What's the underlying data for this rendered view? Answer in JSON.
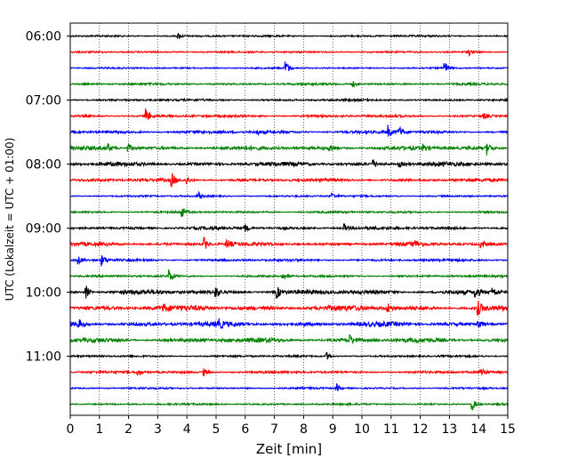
{
  "chart_data": {
    "type": "line",
    "subtype": "helicorder",
    "xlabel": "Zeit  [min]",
    "ylabel": "UTC (Lokalzeit = UTC + 01:00)",
    "xlim": [
      0,
      15
    ],
    "x_ticks": [
      "0",
      "1",
      "2",
      "3",
      "4",
      "5",
      "6",
      "7",
      "8",
      "9",
      "10",
      "11",
      "12",
      "13",
      "14",
      "15"
    ],
    "y_ticks": [
      "06:00",
      "07:00",
      "08:00",
      "09:00",
      "10:00",
      "11:00"
    ],
    "grid": "vertical dotted at each minute",
    "line_colors": [
      "#000000",
      "#ff0000",
      "#0000ff",
      "#008000"
    ],
    "trace_minutes_per_line": 15,
    "traces": [
      {
        "start": "06:00",
        "color": "#000000",
        "noise": 0.8,
        "events": [
          [
            3.7,
            3.0
          ]
        ]
      },
      {
        "start": "06:15",
        "color": "#ff0000",
        "noise": 0.7,
        "events": [
          [
            13.7,
            3.0
          ]
        ]
      },
      {
        "start": "06:30",
        "color": "#0000ff",
        "noise": 0.6,
        "events": [
          [
            7.4,
            8.0
          ],
          [
            12.85,
            7.0
          ]
        ]
      },
      {
        "start": "06:45",
        "color": "#008000",
        "noise": 1.0,
        "events": [
          [
            9.7,
            3.0
          ]
        ]
      },
      {
        "start": "07:00",
        "color": "#000000",
        "noise": 1.0,
        "events": []
      },
      {
        "start": "07:15",
        "color": "#ff0000",
        "noise": 1.2,
        "events": [
          [
            2.6,
            8.0
          ],
          [
            14.2,
            3.0
          ]
        ]
      },
      {
        "start": "07:30",
        "color": "#0000ff",
        "noise": 1.6,
        "events": [
          [
            10.9,
            7.0
          ],
          [
            11.3,
            5.0
          ],
          [
            6.4,
            3.0
          ]
        ]
      },
      {
        "start": "07:45",
        "color": "#008000",
        "noise": 2.0,
        "events": [
          [
            1.3,
            4.0
          ],
          [
            2.0,
            4.0
          ],
          [
            8.9,
            6.0
          ],
          [
            12.1,
            4.0
          ],
          [
            14.3,
            7.0
          ]
        ]
      },
      {
        "start": "08:00",
        "color": "#000000",
        "noise": 2.2,
        "events": [
          [
            10.4,
            4.0
          ],
          [
            11.3,
            3.0
          ]
        ]
      },
      {
        "start": "08:15",
        "color": "#ff0000",
        "noise": 1.6,
        "events": [
          [
            3.5,
            7.0
          ],
          [
            4.0,
            4.0
          ]
        ]
      },
      {
        "start": "08:30",
        "color": "#0000ff",
        "noise": 0.8,
        "events": [
          [
            4.4,
            4.0
          ],
          [
            9.0,
            3.0
          ]
        ]
      },
      {
        "start": "08:45",
        "color": "#008000",
        "noise": 1.0,
        "events": [
          [
            3.8,
            7.0
          ]
        ]
      },
      {
        "start": "09:00",
        "color": "#000000",
        "noise": 1.6,
        "events": [
          [
            6.0,
            4.0
          ],
          [
            9.4,
            4.0
          ]
        ]
      },
      {
        "start": "09:15",
        "color": "#ff0000",
        "noise": 1.8,
        "events": [
          [
            4.6,
            7.0
          ],
          [
            5.4,
            5.0
          ],
          [
            11.8,
            4.0
          ],
          [
            14.1,
            5.0
          ]
        ]
      },
      {
        "start": "09:30",
        "color": "#0000ff",
        "noise": 1.2,
        "events": [
          [
            0.3,
            4.0
          ],
          [
            1.1,
            6.0
          ]
        ]
      },
      {
        "start": "09:45",
        "color": "#008000",
        "noise": 1.0,
        "events": [
          [
            3.4,
            7.0
          ],
          [
            7.3,
            3.0
          ]
        ]
      },
      {
        "start": "10:00",
        "color": "#000000",
        "noise": 2.4,
        "events": [
          [
            0.55,
            7.0
          ],
          [
            5.0,
            5.0
          ],
          [
            7.1,
            6.0
          ],
          [
            13.9,
            6.0
          ],
          [
            14.5,
            5.0
          ]
        ]
      },
      {
        "start": "10:15",
        "color": "#ff0000",
        "noise": 3.0,
        "events": [
          [
            14.0,
            7.0
          ],
          [
            10.9,
            5.0
          ],
          [
            3.2,
            4.0
          ]
        ]
      },
      {
        "start": "10:30",
        "color": "#0000ff",
        "noise": 2.6,
        "events": [
          [
            14.0,
            6.0
          ],
          [
            0.3,
            4.0
          ],
          [
            5.1,
            4.0
          ]
        ]
      },
      {
        "start": "10:45",
        "color": "#008000",
        "noise": 2.4,
        "events": [
          [
            9.6,
            5.0
          ]
        ]
      },
      {
        "start": "11:00",
        "color": "#000000",
        "noise": 0.9,
        "events": [
          [
            8.8,
            4.0
          ]
        ]
      },
      {
        "start": "11:15",
        "color": "#ff0000",
        "noise": 1.2,
        "events": [
          [
            2.3,
            4.0
          ],
          [
            4.6,
            4.0
          ],
          [
            14.1,
            6.0
          ]
        ]
      },
      {
        "start": "11:30",
        "color": "#0000ff",
        "noise": 0.8,
        "events": [
          [
            9.15,
            4.0
          ]
        ]
      },
      {
        "start": "11:45",
        "color": "#008000",
        "noise": 0.8,
        "events": [
          [
            13.8,
            6.0
          ]
        ]
      }
    ]
  }
}
